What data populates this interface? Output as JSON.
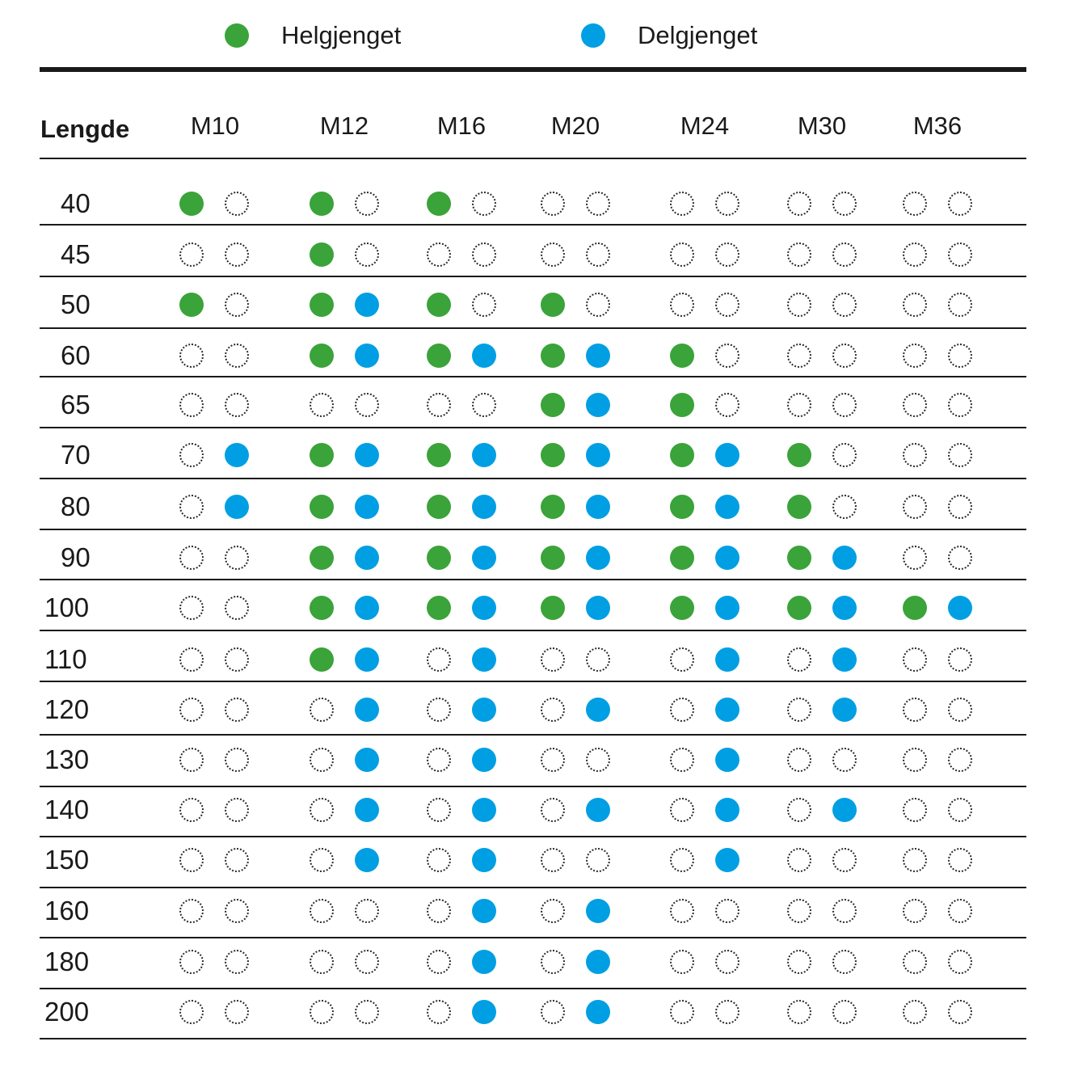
{
  "legend": {
    "full_label": "Helgjenget",
    "part_label": "Delgjenget",
    "full_color": "#3aa339",
    "part_color": "#009fe3"
  },
  "header": {
    "length_label": "Lengde",
    "columns": [
      "M10",
      "M12",
      "M16",
      "M20",
      "M24",
      "M30",
      "M36"
    ]
  },
  "rows": [
    {
      "length": "40",
      "cells": [
        [
          "full",
          "empty"
        ],
        [
          "full",
          "empty"
        ],
        [
          "full",
          "empty"
        ],
        [
          "empty",
          "empty"
        ],
        [
          "empty",
          "empty"
        ],
        [
          "empty",
          "empty"
        ],
        [
          "empty",
          "empty"
        ]
      ]
    },
    {
      "length": "45",
      "cells": [
        [
          "empty",
          "empty"
        ],
        [
          "full",
          "empty"
        ],
        [
          "empty",
          "empty"
        ],
        [
          "empty",
          "empty"
        ],
        [
          "empty",
          "empty"
        ],
        [
          "empty",
          "empty"
        ],
        [
          "empty",
          "empty"
        ]
      ]
    },
    {
      "length": "50",
      "cells": [
        [
          "full",
          "empty"
        ],
        [
          "full",
          "part"
        ],
        [
          "full",
          "empty"
        ],
        [
          "full",
          "empty"
        ],
        [
          "empty",
          "empty"
        ],
        [
          "empty",
          "empty"
        ],
        [
          "empty",
          "empty"
        ]
      ]
    },
    {
      "length": "60",
      "cells": [
        [
          "empty",
          "empty"
        ],
        [
          "full",
          "part"
        ],
        [
          "full",
          "part"
        ],
        [
          "full",
          "part"
        ],
        [
          "full",
          "empty"
        ],
        [
          "empty",
          "empty"
        ],
        [
          "empty",
          "empty"
        ]
      ]
    },
    {
      "length": "65",
      "cells": [
        [
          "empty",
          "empty"
        ],
        [
          "empty",
          "empty"
        ],
        [
          "empty",
          "empty"
        ],
        [
          "full",
          "part"
        ],
        [
          "full",
          "empty"
        ],
        [
          "empty",
          "empty"
        ],
        [
          "empty",
          "empty"
        ]
      ]
    },
    {
      "length": "70",
      "cells": [
        [
          "empty",
          "part"
        ],
        [
          "full",
          "part"
        ],
        [
          "full",
          "part"
        ],
        [
          "full",
          "part"
        ],
        [
          "full",
          "part"
        ],
        [
          "full",
          "empty"
        ],
        [
          "empty",
          "empty"
        ]
      ]
    },
    {
      "length": "80",
      "cells": [
        [
          "empty",
          "part"
        ],
        [
          "full",
          "part"
        ],
        [
          "full",
          "part"
        ],
        [
          "full",
          "part"
        ],
        [
          "full",
          "part"
        ],
        [
          "full",
          "empty"
        ],
        [
          "empty",
          "empty"
        ]
      ]
    },
    {
      "length": "90",
      "cells": [
        [
          "empty",
          "empty"
        ],
        [
          "full",
          "part"
        ],
        [
          "full",
          "part"
        ],
        [
          "full",
          "part"
        ],
        [
          "full",
          "part"
        ],
        [
          "full",
          "part"
        ],
        [
          "empty",
          "empty"
        ]
      ]
    },
    {
      "length": "100",
      "cells": [
        [
          "empty",
          "empty"
        ],
        [
          "full",
          "part"
        ],
        [
          "full",
          "part"
        ],
        [
          "full",
          "part"
        ],
        [
          "full",
          "part"
        ],
        [
          "full",
          "part"
        ],
        [
          "full",
          "part"
        ]
      ]
    },
    {
      "length": "110",
      "cells": [
        [
          "empty",
          "empty"
        ],
        [
          "full",
          "part"
        ],
        [
          "empty",
          "part"
        ],
        [
          "empty",
          "empty"
        ],
        [
          "empty",
          "part"
        ],
        [
          "empty",
          "part"
        ],
        [
          "empty",
          "empty"
        ]
      ]
    },
    {
      "length": "120",
      "cells": [
        [
          "empty",
          "empty"
        ],
        [
          "empty",
          "part"
        ],
        [
          "empty",
          "part"
        ],
        [
          "empty",
          "part"
        ],
        [
          "empty",
          "part"
        ],
        [
          "empty",
          "part"
        ],
        [
          "empty",
          "empty"
        ]
      ]
    },
    {
      "length": "130",
      "cells": [
        [
          "empty",
          "empty"
        ],
        [
          "empty",
          "part"
        ],
        [
          "empty",
          "part"
        ],
        [
          "empty",
          "empty"
        ],
        [
          "empty",
          "part"
        ],
        [
          "empty",
          "empty"
        ],
        [
          "empty",
          "empty"
        ]
      ]
    },
    {
      "length": "140",
      "cells": [
        [
          "empty",
          "empty"
        ],
        [
          "empty",
          "part"
        ],
        [
          "empty",
          "part"
        ],
        [
          "empty",
          "part"
        ],
        [
          "empty",
          "part"
        ],
        [
          "empty",
          "part"
        ],
        [
          "empty",
          "empty"
        ]
      ]
    },
    {
      "length": "150",
      "cells": [
        [
          "empty",
          "empty"
        ],
        [
          "empty",
          "part"
        ],
        [
          "empty",
          "part"
        ],
        [
          "empty",
          "empty"
        ],
        [
          "empty",
          "part"
        ],
        [
          "empty",
          "empty"
        ],
        [
          "empty",
          "empty"
        ]
      ]
    },
    {
      "length": "160",
      "cells": [
        [
          "empty",
          "empty"
        ],
        [
          "empty",
          "empty"
        ],
        [
          "empty",
          "part"
        ],
        [
          "empty",
          "part"
        ],
        [
          "empty",
          "empty"
        ],
        [
          "empty",
          "empty"
        ],
        [
          "empty",
          "empty"
        ]
      ]
    },
    {
      "length": "180",
      "cells": [
        [
          "empty",
          "empty"
        ],
        [
          "empty",
          "empty"
        ],
        [
          "empty",
          "part"
        ],
        [
          "empty",
          "part"
        ],
        [
          "empty",
          "empty"
        ],
        [
          "empty",
          "empty"
        ],
        [
          "empty",
          "empty"
        ]
      ]
    },
    {
      "length": "200",
      "cells": [
        [
          "empty",
          "empty"
        ],
        [
          "empty",
          "empty"
        ],
        [
          "empty",
          "part"
        ],
        [
          "empty",
          "part"
        ],
        [
          "empty",
          "empty"
        ],
        [
          "empty",
          "empty"
        ],
        [
          "empty",
          "empty"
        ]
      ]
    }
  ]
}
